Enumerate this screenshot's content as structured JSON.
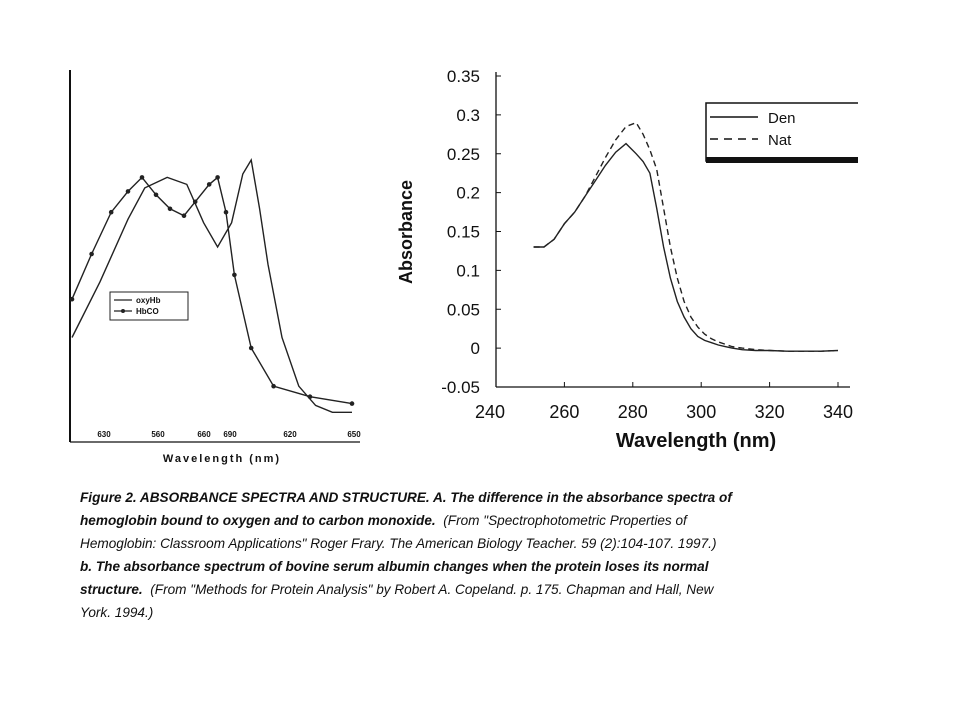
{
  "chart_data": [
    {
      "type": "line",
      "xlabel": "Wavelength (nm)",
      "x_ticks": [
        "630",
        "560",
        "660",
        "690",
        "620",
        "650"
      ],
      "legend": {
        "placement": "center-right",
        "entries": [
          "oxyHb",
          "HbCO"
        ]
      },
      "series": [
        {
          "name": "oxyHb",
          "marker": "none",
          "x": [
            0,
            0.1,
            0.2,
            0.26,
            0.34,
            0.41,
            0.47,
            0.52,
            0.57,
            0.61,
            0.64,
            0.67,
            0.7,
            0.75,
            0.81,
            0.87,
            0.93,
            1
          ],
          "y": [
            0.26,
            0.42,
            0.6,
            0.69,
            0.72,
            0.7,
            0.59,
            0.52,
            0.59,
            0.73,
            0.77,
            0.63,
            0.47,
            0.26,
            0.12,
            0.065,
            0.045,
            0.045
          ]
        },
        {
          "name": "HbCO",
          "marker": "dot",
          "x": [
            0,
            0.07,
            0.14,
            0.2,
            0.25,
            0.3,
            0.35,
            0.4,
            0.44,
            0.49,
            0.52,
            0.55,
            0.58,
            0.64,
            0.72,
            0.85,
            1
          ],
          "y": [
            0.37,
            0.5,
            0.62,
            0.68,
            0.72,
            0.67,
            0.63,
            0.61,
            0.65,
            0.7,
            0.72,
            0.62,
            0.44,
            0.23,
            0.12,
            0.09,
            0.07
          ]
        }
      ]
    },
    {
      "type": "line",
      "xlabel": "Wavelength (nm)",
      "ylabel": "Absorbance",
      "xlim": [
        240,
        340
      ],
      "ylim": [
        -0.05,
        0.35
      ],
      "x_ticks": [
        240,
        260,
        280,
        300,
        320,
        340
      ],
      "y_ticks": [
        0.35,
        0.3,
        0.25,
        0.2,
        0.15,
        0.1,
        0.05,
        0,
        -0.05
      ],
      "y_tick_labels": [
        "0.35",
        "0.3",
        "0.25",
        "0.2",
        "0.15",
        "0.1",
        "0.05",
        "0",
        "-0.05"
      ],
      "legend": {
        "placement": "top-right",
        "entries": [
          "Den",
          "Nat"
        ]
      },
      "series": [
        {
          "name": "Den",
          "style": "solid",
          "x": [
            251,
            254,
            257,
            260,
            263,
            266,
            269,
            272,
            275,
            278,
            281,
            283,
            285,
            287,
            289,
            291,
            293,
            295,
            297,
            299,
            301,
            303,
            305,
            307,
            309,
            312,
            316,
            320,
            325,
            330,
            335,
            340
          ],
          "y": [
            0.13,
            0.13,
            0.14,
            0.16,
            0.175,
            0.195,
            0.215,
            0.235,
            0.252,
            0.263,
            0.25,
            0.24,
            0.225,
            0.18,
            0.13,
            0.09,
            0.06,
            0.04,
            0.025,
            0.015,
            0.01,
            0.007,
            0.004,
            0.002,
            0.0,
            -0.002,
            -0.003,
            -0.003,
            -0.004,
            -0.004,
            -0.004,
            -0.003
          ]
        },
        {
          "name": "Nat",
          "style": "dashed",
          "x": [
            251,
            254,
            257,
            260,
            263,
            266,
            269,
            272,
            275,
            278,
            281,
            283,
            285,
            287,
            289,
            291,
            293,
            295,
            297,
            299,
            301,
            303,
            305,
            307,
            309,
            312,
            316,
            320,
            325,
            330,
            335,
            340
          ],
          "y": [
            0.13,
            0.13,
            0.14,
            0.16,
            0.175,
            0.195,
            0.22,
            0.245,
            0.268,
            0.285,
            0.29,
            0.275,
            0.255,
            0.23,
            0.18,
            0.13,
            0.09,
            0.06,
            0.04,
            0.027,
            0.018,
            0.012,
            0.008,
            0.005,
            0.002,
            0.0,
            -0.002,
            -0.003,
            -0.004,
            -0.004,
            -0.004,
            -0.003
          ]
        }
      ]
    }
  ],
  "caption": {
    "line1": "Figure 2.  ABSORBANCE SPECTRA AND STRUCTURE.  A.  The difference in the absorbance spectra of",
    "line2a": "hemoglobin bound to oxygen and to carbon monoxide.",
    "line2b": "(From \"Spectrophotometric Properties of",
    "line3": "Hemoglobin:  Classroom Applications\"  Roger Frary.  The American Biology Teacher.  59 (2):104-107.  1997.)",
    "line4": "b.  The absorbance spectrum of bovine serum albumin changes when the protein loses its normal",
    "line5a": "structure.",
    "line5b": "(From \"Methods for Protein Analysis\"  by Robert A. Copeland.  p. 175.  Chapman and Hall, New",
    "line6": "York.  1994.)"
  }
}
